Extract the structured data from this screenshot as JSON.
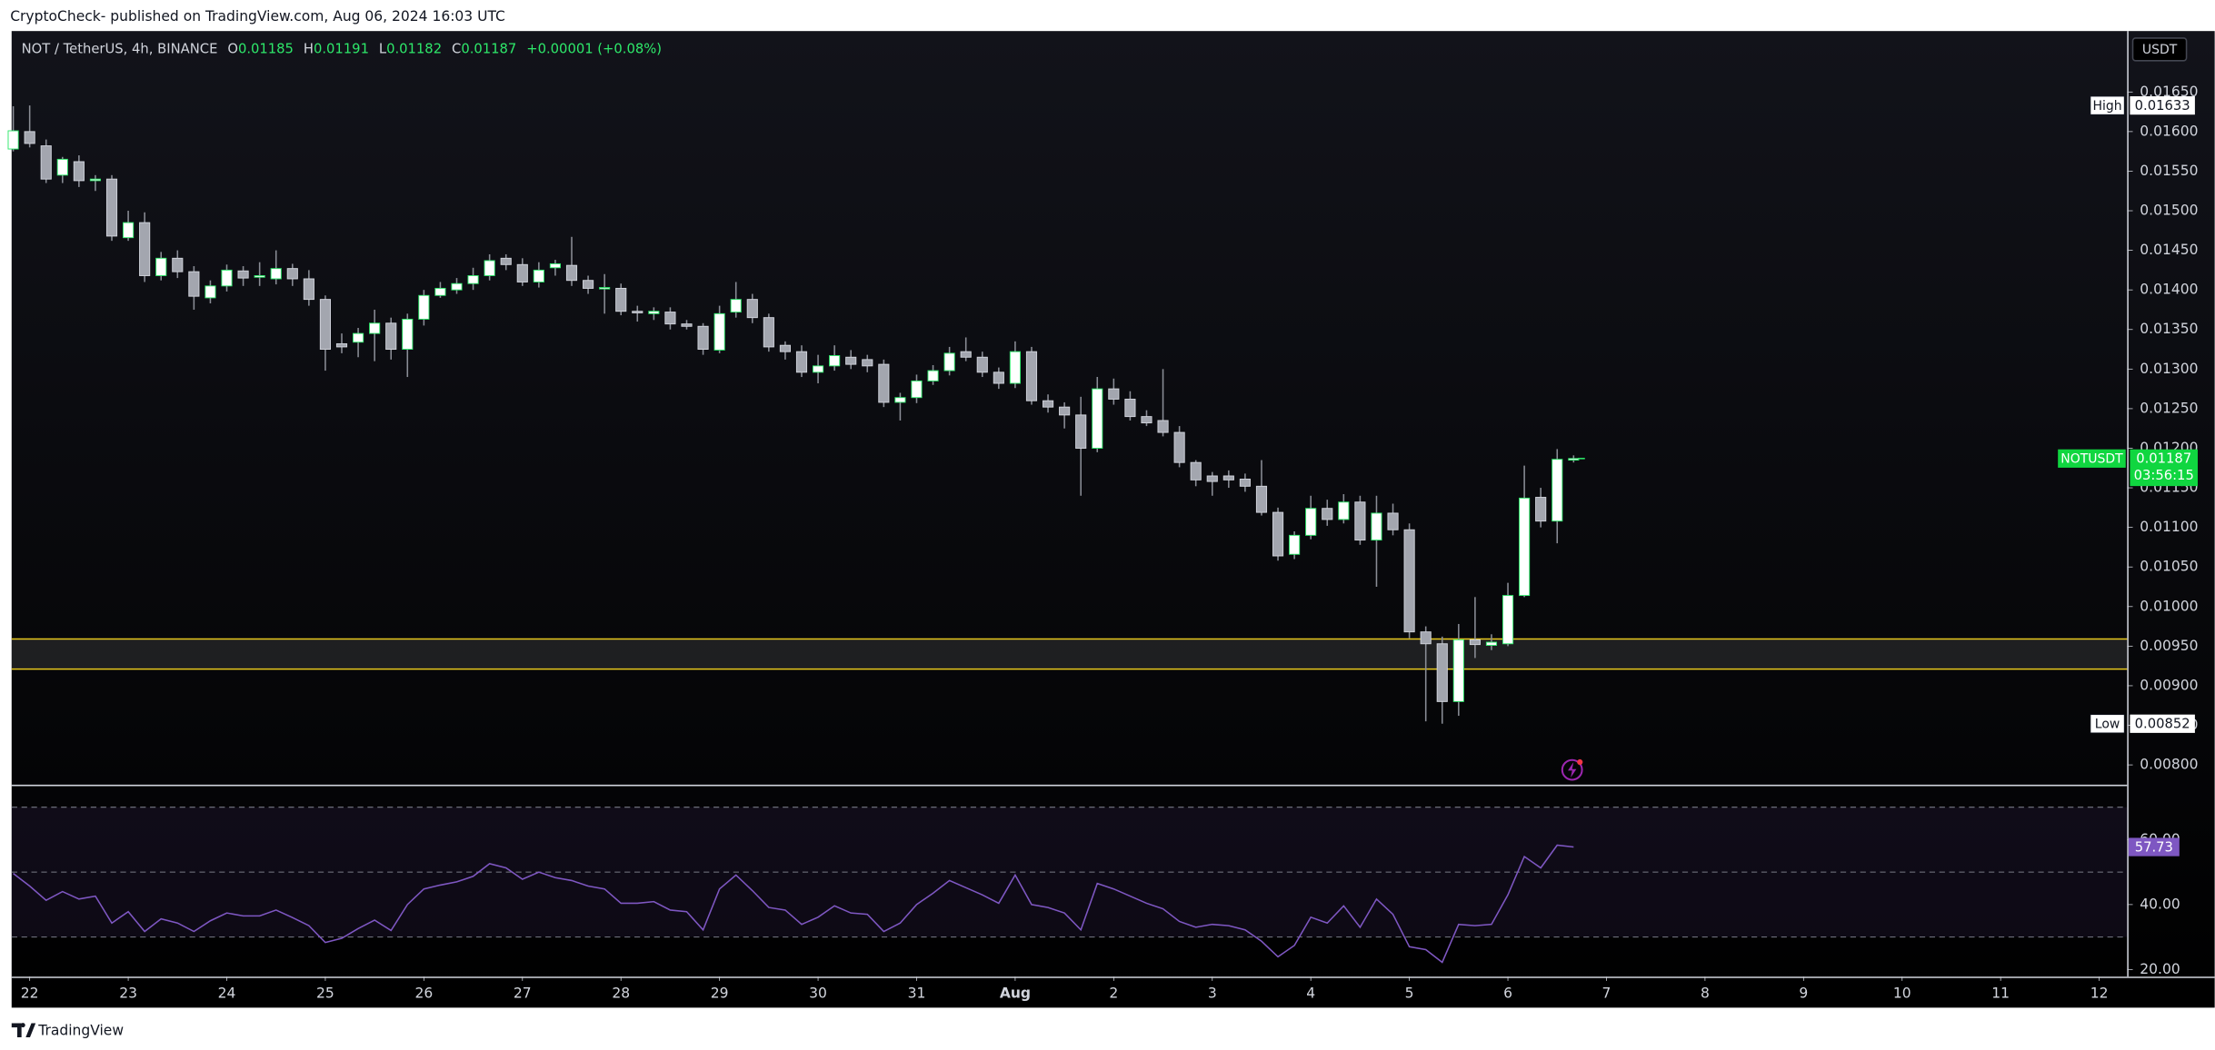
{
  "chart_data": {
    "type": "candlestick",
    "published": "CryptoCheck- published on TradingView.com, Aug 06, 2024 16:03 UTC",
    "symbol": "NOT / TetherUS, 4h, BINANCE",
    "ohlc_labels": [
      "O",
      "H",
      "L",
      "C"
    ],
    "change": "+0.00001 (+0.08%)",
    "currency": "USDT",
    "high_label": "High",
    "low_label": "Low",
    "ticker": "NOTUSDT",
    "countdown": "03:56:15",
    "footer": "TradingView",
    "up_color": "#ffffff",
    "up_border": "#2ee86a",
    "down_color": "#a3a6af",
    "down_border": "#d1d4dc",
    "wick_color": "#8a8d96",
    "candles": {
      "open": [
        0.01578,
        0.016,
        0.01582,
        0.01545,
        0.01562,
        0.01538,
        0.0154,
        0.01466,
        0.01485,
        0.01418,
        0.0144,
        0.01423,
        0.0139,
        0.01405,
        0.01424,
        0.01416,
        0.01414,
        0.01427,
        0.01414,
        0.01388,
        0.01332,
        0.01334,
        0.01345,
        0.01358,
        0.01325,
        0.01363,
        0.01393,
        0.014,
        0.01408,
        0.01418,
        0.0144,
        0.01432,
        0.0141,
        0.01428,
        0.01431,
        0.01412,
        0.01402,
        0.01402,
        0.01373,
        0.0137,
        0.01372,
        0.01357,
        0.01354,
        0.01324,
        0.01372,
        0.01388,
        0.01365,
        0.0133,
        0.01322,
        0.01296,
        0.01304,
        0.01315,
        0.01312,
        0.01306,
        0.01258,
        0.01264,
        0.01285,
        0.01298,
        0.01322,
        0.01315,
        0.01296,
        0.01282,
        0.01322,
        0.0126,
        0.01252,
        0.01242,
        0.012,
        0.01275,
        0.01262,
        0.0124,
        0.01235,
        0.0122,
        0.01182,
        0.01165,
        0.01165,
        0.01161,
        0.01152,
        0.01119,
        0.01066,
        0.0109,
        0.01124,
        0.0111,
        0.01132,
        0.01084,
        0.01118,
        0.01097,
        0.00968,
        0.00953,
        0.0088,
        0.00958,
        0.00951,
        0.00953,
        0.01014,
        0.01138,
        0.01108,
        0.01185
      ],
      "high": [
        0.01632,
        0.01633,
        0.0159,
        0.01568,
        0.0157,
        0.01545,
        0.01545,
        0.015,
        0.01498,
        0.01448,
        0.0145,
        0.0143,
        0.01412,
        0.01432,
        0.0143,
        0.01435,
        0.0145,
        0.01433,
        0.01425,
        0.01393,
        0.01345,
        0.01352,
        0.01375,
        0.01365,
        0.0137,
        0.014,
        0.0141,
        0.01415,
        0.01428,
        0.01445,
        0.01445,
        0.0144,
        0.01435,
        0.01438,
        0.01467,
        0.01418,
        0.0142,
        0.01408,
        0.0138,
        0.01378,
        0.01378,
        0.01362,
        0.01358,
        0.0138,
        0.0141,
        0.01395,
        0.0137,
        0.01335,
        0.0133,
        0.01318,
        0.0133,
        0.01324,
        0.01318,
        0.01312,
        0.0127,
        0.01293,
        0.01305,
        0.01328,
        0.0134,
        0.01322,
        0.01302,
        0.01335,
        0.01328,
        0.01268,
        0.01258,
        0.01265,
        0.0129,
        0.01288,
        0.01272,
        0.01248,
        0.013,
        0.01228,
        0.01185,
        0.0117,
        0.01172,
        0.01168,
        0.01185,
        0.01125,
        0.01095,
        0.0114,
        0.01135,
        0.01142,
        0.0114,
        0.0114,
        0.0113,
        0.01105,
        0.00975,
        0.00962,
        0.00978,
        0.01012,
        0.00965,
        0.0103,
        0.01178,
        0.0115,
        0.01199,
        0.01191
      ],
      "low": [
        0.01575,
        0.0158,
        0.01535,
        0.01535,
        0.0153,
        0.01525,
        0.01462,
        0.01462,
        0.0141,
        0.01412,
        0.01415,
        0.01375,
        0.01383,
        0.01398,
        0.01405,
        0.01405,
        0.01407,
        0.01405,
        0.0138,
        0.01298,
        0.0132,
        0.01315,
        0.0131,
        0.01312,
        0.0129,
        0.01355,
        0.0139,
        0.01395,
        0.014,
        0.01412,
        0.01425,
        0.01405,
        0.01403,
        0.01418,
        0.01405,
        0.01395,
        0.0137,
        0.01368,
        0.0136,
        0.01362,
        0.0135,
        0.0135,
        0.01318,
        0.0132,
        0.01365,
        0.01358,
        0.01322,
        0.01312,
        0.0129,
        0.01282,
        0.01298,
        0.013,
        0.01296,
        0.01252,
        0.01235,
        0.01257,
        0.0128,
        0.01292,
        0.0131,
        0.0129,
        0.01275,
        0.01276,
        0.01255,
        0.01245,
        0.01225,
        0.0114,
        0.01195,
        0.01255,
        0.01235,
        0.01228,
        0.01215,
        0.01176,
        0.01152,
        0.0114,
        0.0115,
        0.01145,
        0.01115,
        0.01058,
        0.0106,
        0.01085,
        0.01102,
        0.01105,
        0.01078,
        0.01025,
        0.0109,
        0.0096,
        0.00855,
        0.00852,
        0.00862,
        0.00935,
        0.00945,
        0.0095,
        0.01012,
        0.011,
        0.0108,
        0.01182
      ],
      "close": [
        0.01601,
        0.01585,
        0.0154,
        0.01565,
        0.01538,
        0.0154,
        0.01468,
        0.01485,
        0.01418,
        0.0144,
        0.01423,
        0.01392,
        0.01405,
        0.01425,
        0.01415,
        0.01418,
        0.01427,
        0.01414,
        0.01388,
        0.01325,
        0.01328,
        0.01345,
        0.01358,
        0.01325,
        0.01363,
        0.01393,
        0.01402,
        0.01408,
        0.01418,
        0.01437,
        0.01432,
        0.0141,
        0.01425,
        0.01433,
        0.01412,
        0.01402,
        0.01403,
        0.01373,
        0.01371,
        0.01373,
        0.01357,
        0.01354,
        0.01325,
        0.0137,
        0.01388,
        0.01365,
        0.01328,
        0.01322,
        0.01296,
        0.01304,
        0.01317,
        0.01306,
        0.01304,
        0.01258,
        0.01264,
        0.01285,
        0.01298,
        0.0132,
        0.01315,
        0.01296,
        0.01282,
        0.01322,
        0.0126,
        0.01252,
        0.01242,
        0.012,
        0.01275,
        0.01262,
        0.0124,
        0.01232,
        0.0122,
        0.01182,
        0.0116,
        0.01158,
        0.0116,
        0.01152,
        0.01119,
        0.01064,
        0.0109,
        0.01124,
        0.0111,
        0.01132,
        0.01084,
        0.01118,
        0.01097,
        0.00968,
        0.00953,
        0.0088,
        0.00958,
        0.00952,
        0.00955,
        0.01014,
        0.01137,
        0.01108,
        0.01186,
        0.01187
      ]
    },
    "zone": [
      0.00921,
      0.00959
    ],
    "zone_color": "#e8c81e",
    "xlim": [
      -0.1,
      128.7
    ],
    "xticks": [
      {
        "value": 1,
        "label": "22"
      },
      {
        "value": 7,
        "label": "23"
      },
      {
        "value": 13,
        "label": "24"
      },
      {
        "value": 19,
        "label": "25"
      },
      {
        "value": 25,
        "label": "26"
      },
      {
        "value": 31,
        "label": "27"
      },
      {
        "value": 37,
        "label": "28"
      },
      {
        "value": 43,
        "label": "29"
      },
      {
        "value": 49,
        "label": "30"
      },
      {
        "value": 55,
        "label": "31"
      },
      {
        "value": 61,
        "label": "Aug"
      },
      {
        "value": 67,
        "label": "2"
      },
      {
        "value": 73,
        "label": "3"
      },
      {
        "value": 79,
        "label": "4"
      },
      {
        "value": 85,
        "label": "5"
      },
      {
        "value": 91,
        "label": "6"
      },
      {
        "value": 97,
        "label": "7"
      },
      {
        "value": 103,
        "label": "8"
      },
      {
        "value": 109,
        "label": "9"
      },
      {
        "value": 115,
        "label": "10"
      },
      {
        "value": 121,
        "label": "11"
      },
      {
        "value": 127,
        "label": "12"
      }
    ],
    "ylim": [
      0.00775,
      0.01727
    ],
    "yticks": [
      {
        "value": 0.008,
        "label": "0.00800"
      },
      {
        "value": 0.0085,
        "label": "0.00850"
      },
      {
        "value": 0.009,
        "label": "0.00900"
      },
      {
        "value": 0.0095,
        "label": "0.00950"
      },
      {
        "value": 0.01,
        "label": "0.01000"
      },
      {
        "value": 0.0105,
        "label": "0.01050"
      },
      {
        "value": 0.011,
        "label": "0.01100"
      },
      {
        "value": 0.0115,
        "label": "0.01150"
      },
      {
        "value": 0.012,
        "label": "0.01200"
      },
      {
        "value": 0.0125,
        "label": "0.01250"
      },
      {
        "value": 0.013,
        "label": "0.01300"
      },
      {
        "value": 0.0135,
        "label": "0.01350"
      },
      {
        "value": 0.014,
        "label": "0.01400"
      },
      {
        "value": 0.0145,
        "label": "0.01450"
      },
      {
        "value": 0.015,
        "label": "0.01500"
      },
      {
        "value": 0.0155,
        "label": "0.01550"
      },
      {
        "value": 0.016,
        "label": "0.01600"
      },
      {
        "value": 0.0165,
        "label": "0.01650"
      }
    ],
    "rsi": {
      "color": "#7e57c2",
      "values": [
        49.6,
        45.7,
        41.3,
        44,
        41.7,
        42.6,
        34.3,
        37.8,
        31.7,
        35.6,
        34.3,
        31.7,
        35,
        37.4,
        36.5,
        36.5,
        38.3,
        36,
        33.5,
        28.3,
        29.6,
        32.6,
        35.2,
        32,
        40,
        44.8,
        46,
        47,
        48.7,
        52.6,
        51.3,
        47.8,
        50,
        48.3,
        47.4,
        45.7,
        44.8,
        40.4,
        40.4,
        40.9,
        38.3,
        37.8,
        32.2,
        44.8,
        49.1,
        44.3,
        39.1,
        38.3,
        33.9,
        36.1,
        39.6,
        37.4,
        37,
        31.7,
        34.3,
        40,
        43.5,
        47.4,
        45.2,
        43,
        40.4,
        49.1,
        40,
        39.1,
        37.4,
        32.2,
        46.5,
        44.8,
        42.6,
        40.4,
        38.7,
        34.8,
        33,
        33.9,
        33.5,
        32.2,
        28.7,
        23.9,
        27.4,
        36.1,
        34.3,
        39.6,
        33,
        41.7,
        37,
        27,
        26.1,
        22.2,
        33.9,
        33.5,
        33.9,
        43,
        54.8,
        51.3,
        58.3,
        57.73
      ],
      "ylim": [
        17.8,
        76.5
      ],
      "yticks": [
        {
          "value": 20,
          "label": "20.00"
        },
        {
          "value": 40,
          "label": "40.00"
        },
        {
          "value": 60,
          "label": "60.00"
        }
      ],
      "levels": [
        70,
        50,
        30
      ]
    }
  }
}
